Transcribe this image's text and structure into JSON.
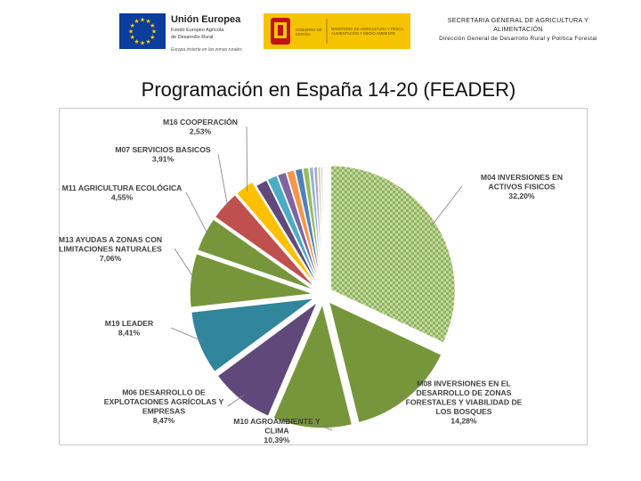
{
  "header": {
    "eu_logo": {
      "title": "Unión Europea",
      "line1": "Fondo Europeo Agrícola",
      "line2": "de Desarrollo Rural",
      "motto": "Europa invierte en las zonas rurales"
    },
    "gov_logo": {
      "crest_text": "GOBIERNO DE ESPAÑA",
      "ministry_text": "MINISTERIO DE AGRICULTURA Y PESCA, ALIMENTACIÓN Y MEDIO AMBIENTE"
    },
    "org_line1": "SECRETARIA GENERAL DE AGRICULTURA Y ALIMENTACIÓN",
    "org_line2": "Dirección General de Desarrollo Rural y Política Forestal"
  },
  "colors": {
    "eu_flag": "#0a3d9c",
    "eu_star": "#ffcc00",
    "gov_yellow": "#f5c400",
    "gov_red": "#c1121c"
  },
  "page_title": "Programación en España 14-20 (FEADER)",
  "chart_data": {
    "type": "pie",
    "title": "Programación en España 14-20 (FEADER)",
    "slices": [
      {
        "label": "M04 INVERSIONES EN ACTIVOS FISICOS",
        "value_label": "32,20%",
        "value": 32.2,
        "color": "#a6c87a",
        "pattern": "checker"
      },
      {
        "label": "M08 INVERSIONES EN EL DESARROLLO DE ZONAS FORESTALES Y VIABILIDAD DE LOS BOSQUES",
        "value_label": "14,28%",
        "value": 14.28,
        "color": "#77963b"
      },
      {
        "label": "M10 AGROAMBIENTE Y CLIMA",
        "value_label": "10,39%",
        "value": 10.39,
        "color": "#77963b"
      },
      {
        "label": "M06 DESARROLLO DE EXPLOTACIONES AGRÍCOLAS Y EMPRESAS",
        "value_label": "8,47%",
        "value": 8.47,
        "color": "#60497a"
      },
      {
        "label": "M19 LEADER",
        "value_label": "8,41%",
        "value": 8.41,
        "color": "#31859c"
      },
      {
        "label": "M13 AYUDAS A ZONAS CON LIMITACIONES NATURALES",
        "value_label": "7,06%",
        "value": 7.06,
        "color": "#77963b"
      },
      {
        "label": "M11 AGRICULTURA ECOLÓGICA",
        "value_label": "4,55%",
        "value": 4.55,
        "color": "#77963b"
      },
      {
        "label": "M07 SERVICIOS BASICOS",
        "value_label": "3,91%",
        "value": 3.91,
        "color": "#c0504d"
      },
      {
        "label": "M16 COOPERACIÓN",
        "value_label": "2,53%",
        "value": 2.53,
        "color": "#ffc000"
      },
      {
        "label": "",
        "value_label": "",
        "value": 1.6,
        "color": "#60497a"
      },
      {
        "label": "",
        "value_label": "",
        "value": 1.4,
        "color": "#4bacc6"
      },
      {
        "label": "",
        "value_label": "",
        "value": 1.2,
        "color": "#8064a2"
      },
      {
        "label": "",
        "value_label": "",
        "value": 1.1,
        "color": "#f79646"
      },
      {
        "label": "",
        "value_label": "",
        "value": 1.0,
        "color": "#4f81bd"
      },
      {
        "label": "",
        "value_label": "",
        "value": 0.8,
        "color": "#9bbb59"
      },
      {
        "label": "",
        "value_label": "",
        "value": 0.6,
        "color": "#8db3e2"
      },
      {
        "label": "",
        "value_label": "",
        "value": 0.5,
        "color": "#b2a1c7"
      },
      {
        "label": "",
        "value_label": "",
        "value": 0.4,
        "color": "#c3d69b"
      },
      {
        "label": "",
        "value_label": "",
        "value": 0.3,
        "color": "#e6b9b8"
      }
    ]
  }
}
